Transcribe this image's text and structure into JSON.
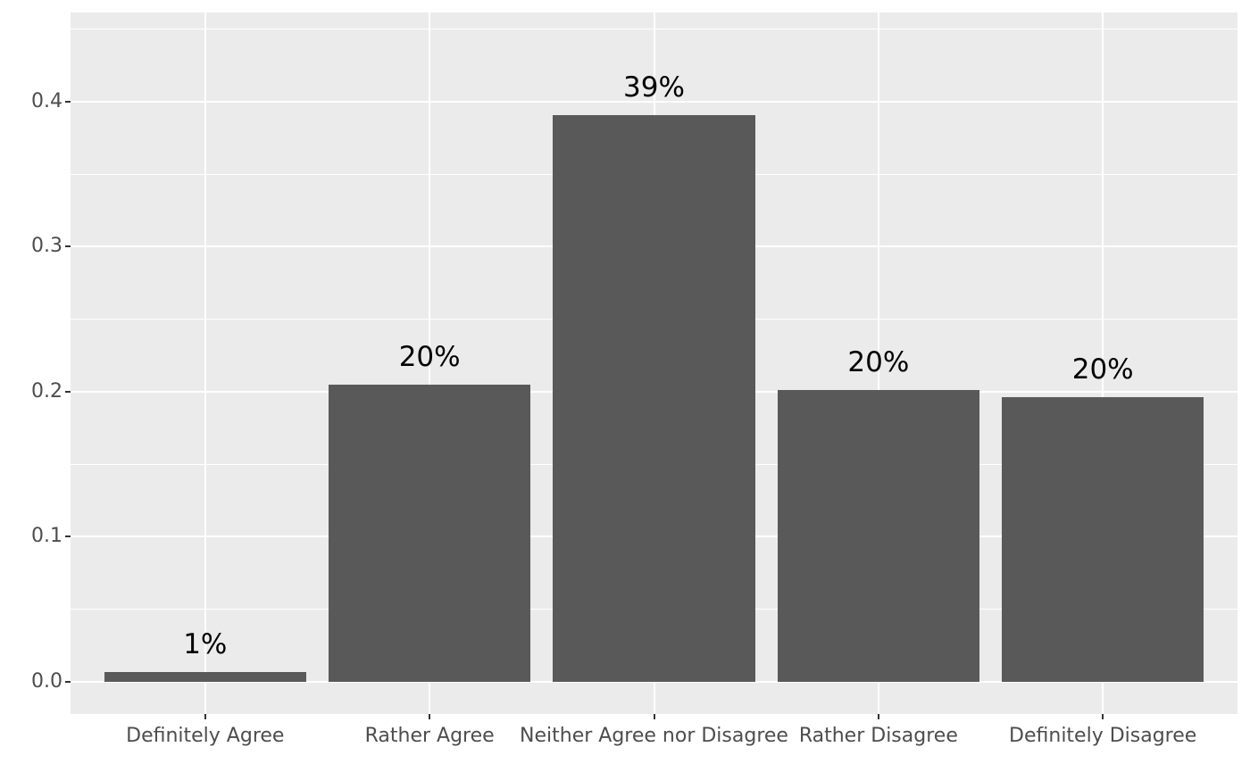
{
  "figure": {
    "background": "#FFFFFF"
  },
  "chart_data": {
    "type": "bar",
    "title": "",
    "xlabel": "",
    "ylabel": "",
    "categories": [
      "Definitely Agree",
      "Rather Agree",
      "Neither Agree nor Disagree",
      "Rather Disagree",
      "Definitely Disagree"
    ],
    "values": [
      0.007,
      0.205,
      0.391,
      0.201,
      0.196
    ],
    "bar_labels": [
      "1%",
      "20%",
      "39%",
      "20%",
      "20%"
    ],
    "y_ticks": {
      "values": [
        0.0,
        0.1,
        0.2,
        0.3,
        0.4
      ],
      "labels": [
        "0.0",
        "0.1",
        "0.2",
        "0.3",
        "0.4"
      ]
    },
    "y_minor_ticks": [
      0.05,
      0.15,
      0.25,
      0.35,
      0.45
    ],
    "ylim": [
      -0.0222,
      0.4615
    ],
    "x_slot_units": 5.2,
    "x_first_center_unit": 0.6,
    "bar_width_units": 0.9,
    "grid": "horizontal major+minor, vertical major at category centers",
    "legend": "none",
    "colors": {
      "bar_fill": "#595959",
      "panel_background": "#EBEBEB",
      "gridline": "#FFFFFF",
      "axis_text": "#4D4D4D",
      "tick_mark": "#333333",
      "bar_label_text": "#000000"
    }
  }
}
